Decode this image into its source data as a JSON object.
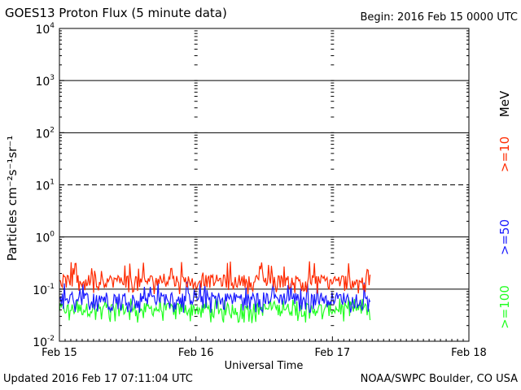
{
  "header": {
    "title": "GOES13 Proton Flux (5 minute data)",
    "begin": "Begin: 2016 Feb 15 0000 UTC"
  },
  "footer": {
    "updated": "Updated 2016 Feb 17 07:11:04 UTC",
    "credit": "NOAA/SWPC Boulder, CO USA"
  },
  "colors": {
    "ge10": "#ff2a00",
    "ge50": "#1a1aff",
    "ge100": "#22ff22",
    "axis": "#000000"
  },
  "chart_data": {
    "type": "line",
    "xlabel": "Universal Time",
    "ylabel": "Particles cm⁻²s⁻¹sr⁻¹",
    "x_ticks": [
      "Feb 15",
      "Feb 16",
      "Feb 17",
      "Feb 18"
    ],
    "y_scale": "log",
    "ylim": [
      0.01,
      10000
    ],
    "y_ticks": [
      {
        "base": "10",
        "exp": "4"
      },
      {
        "base": "10",
        "exp": "3"
      },
      {
        "base": "10",
        "exp": "2"
      },
      {
        "base": "10",
        "exp": "1"
      },
      {
        "base": "10",
        "exp": "0"
      },
      {
        "base": "10",
        "exp": "-1"
      },
      {
        "base": "10",
        "exp": "-2"
      }
    ],
    "reference_lines": [
      {
        "value": 1000,
        "style": "solid"
      },
      {
        "value": 100,
        "style": "solid"
      },
      {
        "value": 10,
        "style": "dashed"
      },
      {
        "value": 1,
        "style": "solid"
      },
      {
        "value": 0.1,
        "style": "solid"
      }
    ],
    "x_range_days": [
      0,
      3
    ],
    "data_end_day": 2.28,
    "series": [
      {
        "name": ">=10",
        "unit": "MeV",
        "typical": 0.14,
        "min": 0.08,
        "max": 0.35
      },
      {
        "name": ">=50",
        "typical": 0.065,
        "min": 0.035,
        "max": 0.14
      },
      {
        "name": ">=100",
        "typical": 0.04,
        "min": 0.022,
        "max": 0.07
      }
    ],
    "grid": false,
    "legend": "right-vertical"
  }
}
